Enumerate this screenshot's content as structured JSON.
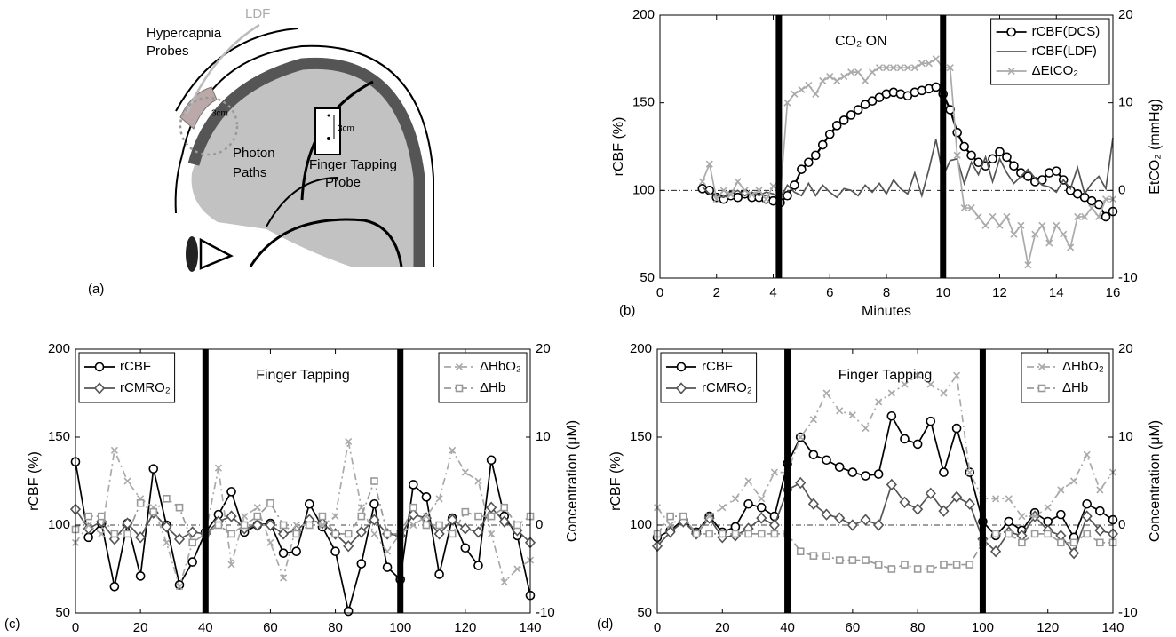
{
  "diagram": {
    "panel_label": "(a)",
    "probe_label": [
      "Hypercapnia",
      "Probes"
    ],
    "ldf_label": "LDF",
    "scale_left": "3cm",
    "photon_label": [
      "Photon",
      "Paths"
    ],
    "tapping_label": [
      "Finger Tapping",
      "Probe"
    ],
    "scale_right": "3cm"
  },
  "chart_data": [
    {
      "type": "line",
      "panel_label": "(b)",
      "annotation": "CO₂ ON",
      "xlabel": "Minutes",
      "ylabel": "rCBF (%)",
      "y2label": "EtCO₂ (mmHg)",
      "xlim": [
        0,
        16
      ],
      "xticks": [
        0,
        2,
        4,
        6,
        8,
        10,
        12,
        14,
        16
      ],
      "ylim": [
        50,
        200
      ],
      "yticks": [
        50,
        100,
        150,
        200
      ],
      "y2lim": [
        -10,
        20
      ],
      "y2ticks": [
        -10,
        0,
        10,
        20
      ],
      "vlines": [
        4.2,
        10
      ],
      "hline": 100,
      "legend": "upper right",
      "x": [
        1.5,
        1.75,
        2,
        2.25,
        2.5,
        2.75,
        3,
        3.25,
        3.5,
        3.75,
        4,
        4.25,
        4.5,
        4.75,
        5,
        5.25,
        5.5,
        5.75,
        6,
        6.25,
        6.5,
        6.75,
        7,
        7.25,
        7.5,
        7.75,
        8,
        8.25,
        8.5,
        8.75,
        9,
        9.25,
        9.5,
        9.75,
        10,
        10.25,
        10.5,
        10.75,
        11,
        11.25,
        11.5,
        11.75,
        12,
        12.25,
        12.5,
        12.75,
        13,
        13.25,
        13.5,
        13.75,
        14,
        14.25,
        14.5,
        14.75,
        15,
        15.25,
        15.5,
        15.75,
        16
      ],
      "series": [
        {
          "name": "rCBF(DCS)",
          "color": "#000000",
          "marker": "o",
          "dash": "-",
          "values": [
            101,
            100,
            96,
            95,
            97,
            96,
            98,
            96,
            96,
            95,
            94,
            93,
            97,
            103,
            112,
            116,
            120,
            126,
            132,
            137,
            140,
            143,
            146,
            149,
            151,
            153,
            155,
            156,
            155,
            154,
            156,
            157,
            158,
            159,
            155,
            146,
            133,
            125,
            120,
            116,
            114,
            118,
            122,
            119,
            114,
            110,
            108,
            105,
            106,
            110,
            111,
            106,
            100,
            98,
            96,
            94,
            92,
            85,
            88
          ]
        },
        {
          "name": "rCBF(LDF)",
          "color": "#555555",
          "marker": "none",
          "dash": "-",
          "values": [
            102,
            98,
            97,
            96,
            98,
            100,
            97,
            99,
            97,
            99,
            98,
            95,
            103,
            99,
            97,
            104,
            97,
            103,
            99,
            96,
            101,
            100,
            97,
            103,
            99,
            104,
            98,
            106,
            101,
            98,
            110,
            97,
            112,
            129,
            108,
            117,
            118,
            104,
            116,
            109,
            119,
            105,
            118,
            110,
            104,
            108,
            112,
            107,
            103,
            102,
            99,
            106,
            101,
            113,
            98,
            104,
            108,
            101,
            130
          ]
        },
        {
          "name": "ΔEtCO₂",
          "color": "#aaaaaa",
          "marker": "x",
          "dash": "-",
          "axis": "y2",
          "values": [
            1,
            3,
            -1,
            0,
            -0.5,
            1,
            0,
            -0.5,
            0,
            -1,
            0.5,
            -0.5,
            10,
            11,
            11.5,
            12,
            11,
            12.5,
            13,
            12.5,
            13,
            13.5,
            13.5,
            12.5,
            13.5,
            14,
            14,
            14,
            14,
            14,
            14,
            14.5,
            14.5,
            15,
            14,
            14,
            4,
            -2,
            -2,
            -3,
            -4,
            -3,
            -4,
            -3,
            -5,
            -4,
            -8.5,
            -5,
            -4,
            -6,
            -4,
            -5,
            -6.5,
            -3,
            -3,
            -2,
            -3,
            -1,
            -1
          ]
        }
      ]
    },
    {
      "type": "line",
      "panel_label": "(c)",
      "annotation": "Finger Tapping",
      "ylabel": "rCBF (%)",
      "y2label": "Concentration (μM)",
      "xlim": [
        0,
        140
      ],
      "xticks": [
        0,
        20,
        40,
        60,
        80,
        100,
        120,
        140
      ],
      "ylim": [
        50,
        200
      ],
      "yticks": [
        50,
        100,
        150,
        200
      ],
      "y2lim": [
        -10,
        20
      ],
      "y2ticks": [
        -10,
        0,
        10,
        20
      ],
      "vlines": [
        40,
        100
      ],
      "hline": 100,
      "legend": "upper left",
      "legend2": "upper right",
      "x": [
        0,
        4,
        8,
        12,
        16,
        20,
        24,
        28,
        32,
        36,
        40,
        44,
        48,
        52,
        56,
        60,
        64,
        68,
        72,
        76,
        80,
        84,
        88,
        92,
        96,
        100,
        104,
        108,
        112,
        116,
        120,
        124,
        128,
        132,
        136,
        140
      ],
      "series": [
        {
          "name": "rCBF",
          "color": "#000000",
          "marker": "o",
          "dash": "-",
          "values": [
            136,
            93,
            101,
            65,
            101,
            71,
            132,
            100,
            66,
            79,
            96,
            106,
            119,
            96,
            100,
            101,
            84,
            85,
            112,
            99,
            85,
            51,
            78,
            112,
            76,
            69,
            123,
            116,
            72,
            104,
            87,
            77,
            137,
            105,
            94,
            60
          ]
        },
        {
          "name": "rCMRO₂",
          "color": "#555555",
          "marker": "d",
          "dash": "-",
          "values": [
            109,
            98,
            102,
            92,
            101,
            93,
            107,
            99,
            92,
            96,
            95,
            102,
            105,
            98,
            100,
            100,
            95,
            97,
            103,
            101,
            95,
            88,
            96,
            103,
            95,
            94,
            106,
            104,
            95,
            103,
            98,
            96,
            110,
            102,
            97,
            90
          ]
        },
        {
          "name": "ΔHbO₂",
          "color": "#aaaaaa",
          "marker": "x",
          "dash": "-.",
          "axis": "y2",
          "values": [
            -2,
            0,
            -1,
            8.5,
            5,
            3,
            2,
            -2,
            -7,
            -2,
            -1,
            6.5,
            -4.5,
            1,
            2,
            -2,
            -6,
            0,
            0,
            0,
            1,
            9.5,
            2,
            -1,
            -3,
            -1,
            0,
            1,
            3,
            8.5,
            6,
            5,
            -1,
            -6.5,
            -5,
            -4
          ]
        },
        {
          "name": "ΔHb",
          "color": "#999999",
          "marker": "s",
          "dash": "-.",
          "axis": "y2",
          "values": [
            -0.5,
            1,
            1,
            -1,
            -1,
            2.5,
            1.5,
            3,
            2,
            -2,
            -1,
            0,
            -1,
            0,
            1,
            2.5,
            0,
            -1,
            0,
            1,
            -1,
            -1,
            1,
            5,
            -1,
            -1,
            2,
            0,
            0,
            -1,
            1.5,
            1,
            1,
            2,
            0,
            1
          ]
        }
      ]
    },
    {
      "type": "line",
      "panel_label": "(d)",
      "annotation": "Finger Tapping",
      "ylabel": "rCBF (%)",
      "y2label": "Concentration (μM)",
      "xlim": [
        0,
        140
      ],
      "xticks": [
        0,
        20,
        40,
        60,
        80,
        100,
        120,
        140
      ],
      "ylim": [
        50,
        200
      ],
      "yticks": [
        50,
        100,
        150,
        200
      ],
      "y2lim": [
        -10,
        20
      ],
      "y2ticks": [
        -10,
        0,
        10,
        20
      ],
      "vlines": [
        40,
        100
      ],
      "hline": 100,
      "legend": "upper left",
      "legend2": "upper right",
      "x": [
        0,
        4,
        8,
        12,
        16,
        20,
        24,
        28,
        32,
        36,
        40,
        44,
        48,
        52,
        56,
        60,
        64,
        68,
        72,
        76,
        80,
        84,
        88,
        92,
        96,
        100,
        104,
        108,
        112,
        116,
        120,
        124,
        128,
        132,
        136,
        140
      ],
      "series": [
        {
          "name": "rCBF",
          "color": "#000000",
          "marker": "o",
          "dash": "-",
          "values": [
            93,
            97,
            103,
            96,
            105,
            96,
            99,
            112,
            110,
            105,
            135,
            150,
            140,
            137,
            133,
            130,
            128,
            129,
            162,
            149,
            146,
            159,
            130,
            155,
            130,
            102,
            94,
            102,
            97,
            107,
            102,
            106,
            93,
            112,
            108,
            103
          ]
        },
        {
          "name": "rCMRO₂",
          "color": "#555555",
          "marker": "d",
          "dash": "-",
          "values": [
            88,
            96,
            102,
            95,
            104,
            93,
            94,
            98,
            104,
            100,
            120,
            124,
            112,
            106,
            104,
            100,
            103,
            100,
            123,
            113,
            109,
            118,
            108,
            116,
            112,
            92,
            85,
            96,
            94,
            105,
            97,
            94,
            84,
            105,
            97,
            95
          ]
        },
        {
          "name": "ΔHbO₂",
          "color": "#aaaaaa",
          "marker": "x",
          "dash": "-.",
          "axis": "y2",
          "values": [
            2,
            0,
            1,
            -1,
            1,
            2,
            3,
            5,
            3,
            6,
            6,
            10,
            12,
            15,
            13,
            12.5,
            11,
            14,
            15,
            16,
            17,
            16,
            15,
            17,
            6,
            3,
            3,
            3,
            1,
            1,
            2,
            4,
            5,
            8,
            4,
            6
          ]
        },
        {
          "name": "ΔHb",
          "color": "#999999",
          "marker": "s",
          "dash": "-.",
          "axis": "y2",
          "values": [
            -1,
            1,
            1,
            -1,
            -1,
            -1,
            -1,
            -1,
            -1,
            -1,
            -1,
            -3,
            -3.5,
            -3.5,
            -4,
            -4,
            -4,
            -4.5,
            -5,
            -4.5,
            -5,
            -5,
            -4.5,
            -4.5,
            -4.5,
            -2,
            -1,
            -1,
            -2,
            -1,
            -1,
            -2,
            -2,
            -1,
            -2,
            -2
          ]
        }
      ]
    }
  ]
}
